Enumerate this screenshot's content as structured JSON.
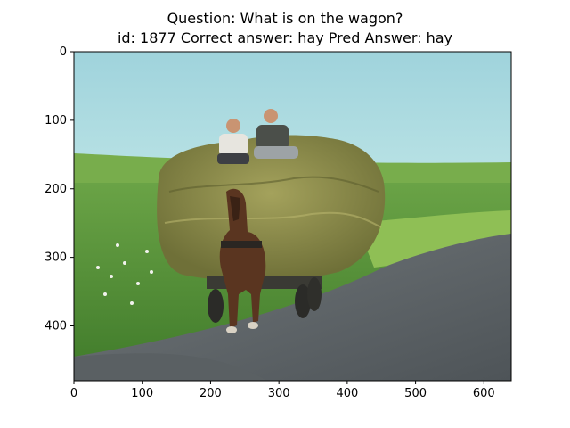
{
  "figure": {
    "title_line1": "Question: What is on the wagon?",
    "title_line2": "id: 1877 Correct answer: hay Pred Answer: hay",
    "x_ticks": [
      "0",
      "100",
      "200",
      "300",
      "400",
      "500",
      "600"
    ],
    "y_ticks": [
      "0",
      "100",
      "200",
      "300",
      "400"
    ],
    "colors": {
      "sky": "#a9d9e0",
      "field": "#5f9a3b",
      "hay": "#8a8a4a",
      "road": "#5e6468",
      "horse": "#5a3520",
      "axes": "#000000"
    }
  }
}
